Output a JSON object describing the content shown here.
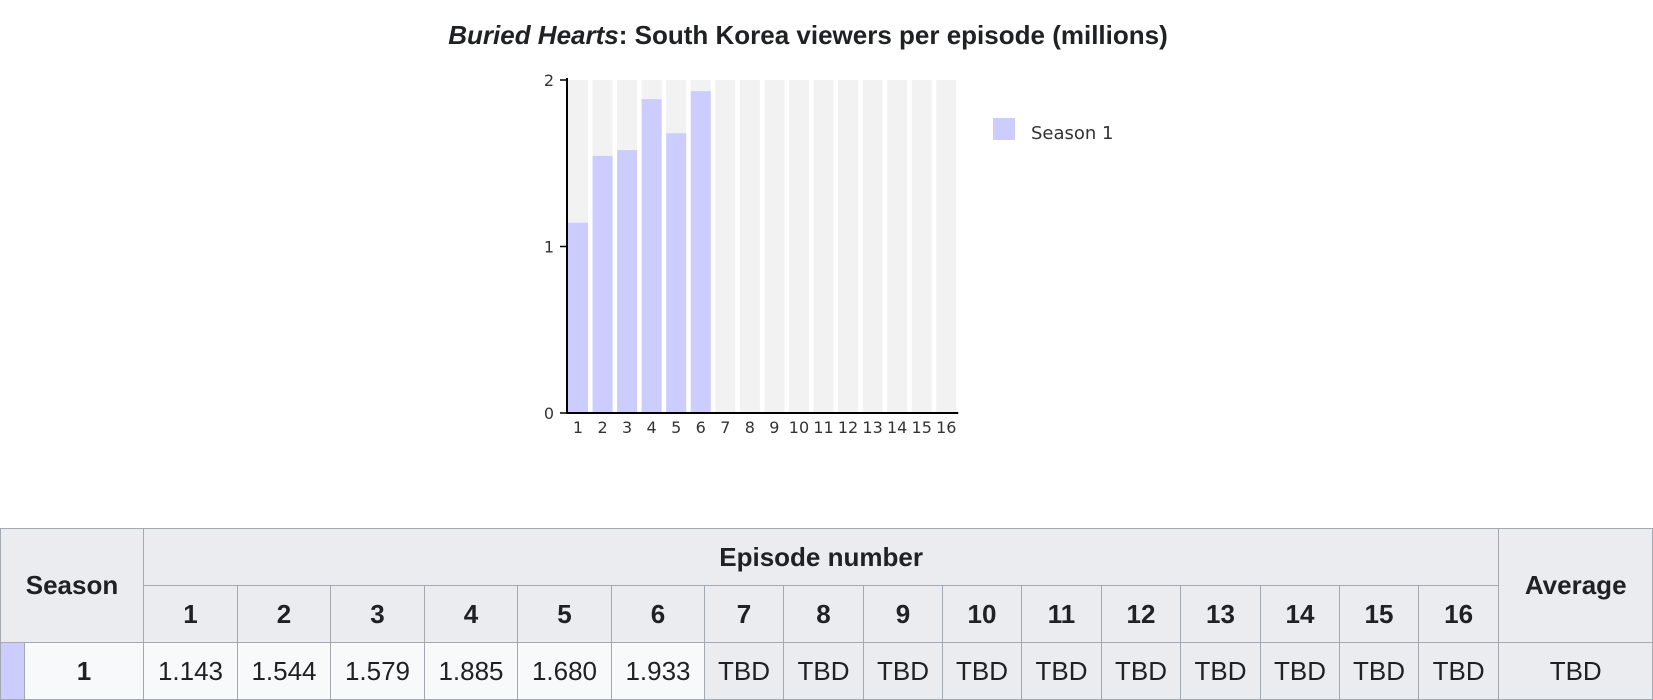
{
  "title_italic": "Buried Hearts",
  "title_rest": ": South Korea viewers per episode (millions)",
  "chart_data": {
    "type": "bar",
    "title": "Buried Hearts: South Korea viewers per episode (millions)",
    "categories": [
      "1",
      "2",
      "3",
      "4",
      "5",
      "6",
      "7",
      "8",
      "9",
      "10",
      "11",
      "12",
      "13",
      "14",
      "15",
      "16"
    ],
    "series": [
      {
        "name": "Season 1",
        "values": [
          1.143,
          1.544,
          1.579,
          1.885,
          1.68,
          1.933,
          null,
          null,
          null,
          null,
          null,
          null,
          null,
          null,
          null,
          null
        ]
      }
    ],
    "yticks": [
      0,
      1,
      2
    ],
    "ylim": [
      0,
      2
    ],
    "grid": false,
    "legend": "right",
    "colors": {
      "bar": "#ccccff",
      "slot": "#f2f2f2",
      "axis": "#000000"
    }
  },
  "table": {
    "season_header": "Season",
    "episode_header": "Episode number",
    "average_header": "Average",
    "episodes": [
      "1",
      "2",
      "3",
      "4",
      "5",
      "6",
      "7",
      "8",
      "9",
      "10",
      "11",
      "12",
      "13",
      "14",
      "15",
      "16"
    ],
    "rows": [
      {
        "season": "1",
        "values": [
          "1.143",
          "1.544",
          "1.579",
          "1.885",
          "1.680",
          "1.933",
          "TBD",
          "TBD",
          "TBD",
          "TBD",
          "TBD",
          "TBD",
          "TBD",
          "TBD",
          "TBD",
          "TBD"
        ],
        "average": "TBD"
      }
    ]
  }
}
